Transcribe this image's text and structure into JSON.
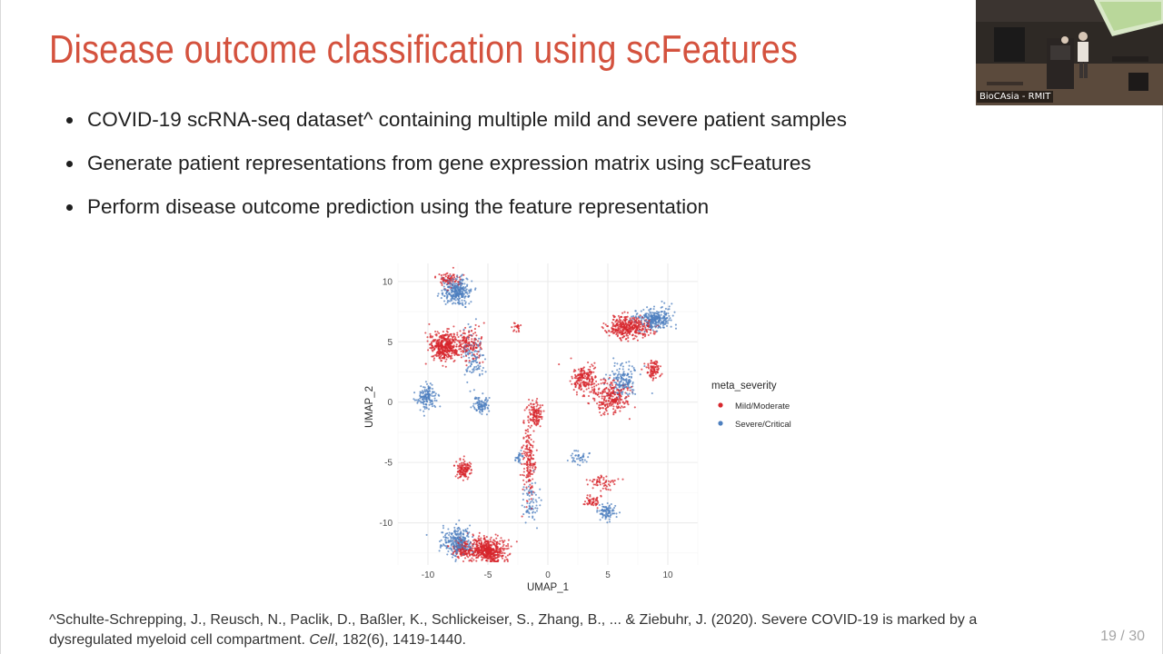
{
  "slide": {
    "title": "Disease outcome classification using scFeatures",
    "bullets": [
      "COVID-19 scRNA-seq dataset^ containing multiple mild and severe patient samples",
      "Generate patient representations from gene expression matrix using scFeatures",
      "Perform disease outcome prediction using the feature representation"
    ],
    "footnote": {
      "line1": "^Schulte-Schrepping, J., Reusch, N., Paclik, D., Baßler, K., Schlickeiser, S., Zhang, B., ... & Ziebuhr, J. (2020). Severe COVID-19 is marked by a",
      "line2_before": "dysregulated myeloid cell compartment. ",
      "line2_journal": "Cell",
      "line2_after": ", 182(6), 1419-1440."
    },
    "page_number": "19 / 30"
  },
  "webcam": {
    "label": "BioCAsia - RMIT"
  },
  "colors": {
    "title": "#d4523e",
    "mild": "#d7262c",
    "severe": "#4d7fbf"
  },
  "chart_data": {
    "type": "scatter",
    "xlabel": "UMAP_1",
    "ylabel": "UMAP_2",
    "xlim": [
      -12.5,
      12.5
    ],
    "ylim": [
      -13.5,
      11.5
    ],
    "xticks": [
      "-10",
      "-5",
      "0",
      "5",
      "10"
    ],
    "yticks": [
      "10",
      "5",
      "0",
      "-5",
      "-10"
    ],
    "grid": true,
    "legend": {
      "title": "meta_severity",
      "placement": "right",
      "entries": [
        "Mild/Moderate",
        "Severe/Critical"
      ]
    },
    "series": [
      {
        "name": "Mild/Moderate",
        "clusters": [
          {
            "x": -8.6,
            "y": 4.6,
            "sx": 1.2,
            "sy": 1.1,
            "n": 420
          },
          {
            "x": -6.6,
            "y": 4.8,
            "sx": 1.0,
            "sy": 1.2,
            "n": 150
          },
          {
            "x": -5.0,
            "y": -12.3,
            "sx": 1.4,
            "sy": 0.9,
            "n": 520
          },
          {
            "x": -7.1,
            "y": -12.2,
            "sx": 0.9,
            "sy": 0.8,
            "n": 120
          },
          {
            "x": 6.8,
            "y": 6.2,
            "sx": 1.6,
            "sy": 0.8,
            "n": 380
          },
          {
            "x": 5.3,
            "y": 0.4,
            "sx": 1.3,
            "sy": 1.2,
            "n": 260
          },
          {
            "x": 3.1,
            "y": 1.9,
            "sx": 1.1,
            "sy": 1.1,
            "n": 200
          },
          {
            "x": -1.1,
            "y": -1.0,
            "sx": 0.6,
            "sy": 0.9,
            "n": 120
          },
          {
            "x": -1.6,
            "y": -4.8,
            "sx": 0.5,
            "sy": 2.8,
            "n": 180
          },
          {
            "x": -7.0,
            "y": -5.6,
            "sx": 0.6,
            "sy": 0.7,
            "n": 120
          },
          {
            "x": 3.7,
            "y": -8.3,
            "sx": 0.6,
            "sy": 0.4,
            "n": 50
          },
          {
            "x": 8.8,
            "y": 2.7,
            "sx": 0.5,
            "sy": 0.7,
            "n": 90
          },
          {
            "x": 4.6,
            "y": -6.7,
            "sx": 1.0,
            "sy": 0.6,
            "n": 60
          },
          {
            "x": -8.2,
            "y": 10.2,
            "sx": 0.8,
            "sy": 0.6,
            "n": 80
          },
          {
            "x": -2.6,
            "y": 6.2,
            "sx": 0.3,
            "sy": 0.3,
            "n": 20
          }
        ]
      },
      {
        "name": "Severe/Critical",
        "clusters": [
          {
            "x": -7.6,
            "y": 9.2,
            "sx": 1.1,
            "sy": 1.0,
            "n": 300
          },
          {
            "x": -10.1,
            "y": 0.4,
            "sx": 0.7,
            "sy": 0.9,
            "n": 150
          },
          {
            "x": -5.6,
            "y": -0.3,
            "sx": 0.6,
            "sy": 0.7,
            "n": 90
          },
          {
            "x": -7.6,
            "y": -11.6,
            "sx": 1.1,
            "sy": 1.0,
            "n": 280
          },
          {
            "x": 8.9,
            "y": 6.9,
            "sx": 1.3,
            "sy": 0.8,
            "n": 280
          },
          {
            "x": 6.3,
            "y": 1.8,
            "sx": 1.0,
            "sy": 1.4,
            "n": 170
          },
          {
            "x": 4.9,
            "y": -9.1,
            "sx": 0.6,
            "sy": 0.6,
            "n": 90
          },
          {
            "x": -6.2,
            "y": 3.6,
            "sx": 0.8,
            "sy": 2.2,
            "n": 110
          },
          {
            "x": 2.6,
            "y": -4.6,
            "sx": 0.9,
            "sy": 0.5,
            "n": 40
          },
          {
            "x": -2.4,
            "y": -4.6,
            "sx": 0.3,
            "sy": 0.4,
            "n": 25
          },
          {
            "x": -1.4,
            "y": -8.3,
            "sx": 0.6,
            "sy": 1.5,
            "n": 70
          }
        ]
      }
    ]
  }
}
